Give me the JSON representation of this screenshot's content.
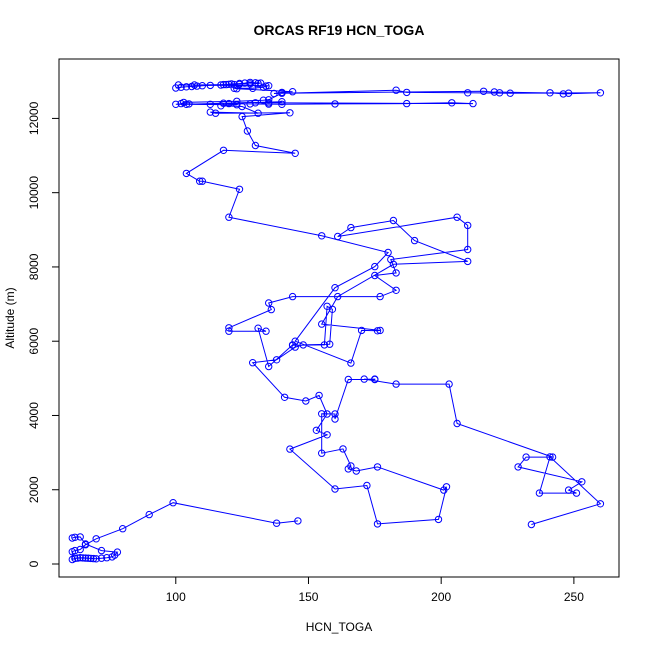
{
  "chart_data": {
    "type": "line",
    "title": "ORCAS RF19 HCN_TOGA",
    "xlabel": "HCN_TOGA",
    "ylabel": "Altitude (m)",
    "xlim": [
      56,
      267
    ],
    "ylim": [
      -350,
      13600
    ],
    "xticks": [
      100,
      150,
      200,
      250
    ],
    "yticks": [
      0,
      2000,
      4000,
      6000,
      8000,
      10000,
      12000
    ],
    "grid": false,
    "line_color": "#0000ff",
    "marker": "open-circle",
    "series": [
      {
        "x": [
          234,
          260,
          241,
          237,
          251,
          248,
          253,
          229,
          232,
          242,
          206,
          203,
          183,
          171,
          175,
          175,
          165,
          160,
          160,
          155,
          155,
          163,
          166,
          165,
          168,
          176,
          201,
          202,
          199,
          176,
          172,
          160,
          143,
          157,
          153,
          157,
          154,
          149,
          141,
          129,
          138,
          145,
          148,
          158,
          159,
          157,
          156,
          144,
          144,
          135,
          131,
          134,
          120,
          120,
          136,
          135,
          144,
          177,
          183,
          175,
          183,
          181,
          210,
          210,
          206,
          161,
          166,
          182,
          190,
          210,
          182,
          161,
          155,
          177,
          176,
          170,
          166,
          145,
          160,
          175,
          180,
          155,
          120,
          124,
          110,
          109,
          104,
          118,
          145,
          130,
          127,
          125,
          143,
          115,
          113,
          131,
          125,
          117,
          123,
          100,
          104,
          140,
          135,
          130,
          212,
          204,
          187,
          160,
          140,
          135,
          128,
          120,
          118,
          113,
          105,
          102,
          103,
          123,
          133,
          135,
          140,
          216,
          222,
          220,
          248,
          241,
          246,
          260,
          226,
          210,
          187,
          183,
          137,
          140,
          144,
          123,
          122,
          129,
          133,
          134,
          135,
          101,
          107,
          118,
          122,
          124,
          128,
          131,
          132,
          130,
          128,
          126,
          124,
          121,
          120,
          119,
          117,
          113,
          110,
          108,
          106,
          104,
          102,
          100
        ],
        "y": [
          1065,
          1620,
          2885,
          1910,
          1910,
          1990,
          2215,
          2615,
          2880,
          2880,
          3785,
          4845,
          4845,
          4980,
          4970,
          4980,
          4970,
          3905,
          4040,
          4045,
          2985,
          3100,
          2640,
          2560,
          2505,
          2615,
          1990,
          2080,
          1200,
          1080,
          2115,
          2020,
          3095,
          3480,
          3600,
          4040,
          4540,
          4390,
          4490,
          5420,
          5500,
          5840,
          5900,
          5920,
          6860,
          6940,
          5900,
          5890,
          5900,
          5320,
          6350,
          6270,
          6270,
          6360,
          6850,
          7030,
          7200,
          7200,
          7370,
          7770,
          7840,
          8200,
          8470,
          9120,
          9340,
          8820,
          9060,
          9250,
          8710,
          8150,
          8070,
          7200,
          6460,
          6290,
          6280,
          6290,
          5410,
          6000,
          7440,
          8010,
          8390,
          8840,
          9340,
          10090,
          10310,
          10310,
          10520,
          11140,
          11060,
          11270,
          11660,
          12050,
          12150,
          12140,
          12170,
          12140,
          12320,
          12340,
          12370,
          12380,
          12380,
          12450,
          12420,
          12420,
          12400,
          12420,
          12400,
          12390,
          12380,
          12385,
          12390,
          12400,
          12410,
          12380,
          12390,
          12400,
          12430,
          12460,
          12490,
          12500,
          12680,
          12730,
          12690,
          12710,
          12680,
          12690,
          12660,
          12690,
          12680,
          12690,
          12700,
          12760,
          12670,
          12700,
          12720,
          12800,
          12810,
          12810,
          12840,
          12870,
          12880,
          12900,
          12900,
          12910,
          12910,
          12920,
          12930,
          12940,
          12950,
          12960,
          12970,
          12950,
          12940,
          12930,
          12920,
          12910,
          12900,
          12890,
          12880,
          12870,
          12860,
          12850,
          12840,
          12820
        ]
      },
      {
        "x": [
          146,
          138,
          99,
          90,
          80,
          70,
          66,
          64,
          62,
          61,
          61,
          62,
          63,
          64,
          65,
          66,
          67,
          68,
          69,
          70,
          72,
          74,
          76,
          77,
          78,
          72,
          66,
          64,
          62,
          61
        ],
        "y": [
          1160,
          1100,
          1650,
          1330,
          950,
          680,
          520,
          390,
          360,
          330,
          120,
          150,
          160,
          170,
          165,
          160,
          155,
          150,
          145,
          140,
          155,
          170,
          190,
          240,
          320,
          360,
          540,
          730,
          720,
          700
        ]
      }
    ]
  }
}
